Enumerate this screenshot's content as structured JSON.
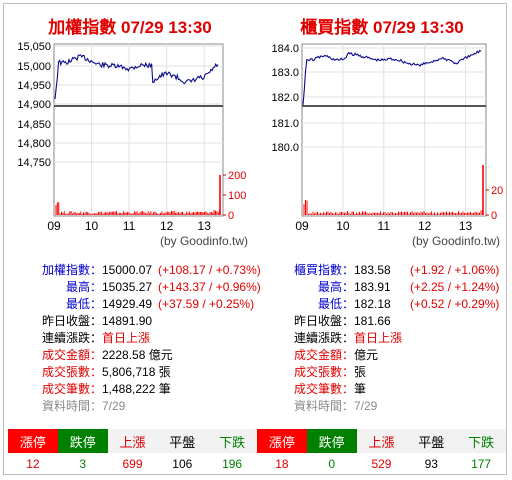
{
  "panels": [
    {
      "title": "加權指數",
      "time": "07/29 13:30",
      "source": "(by Goodinfo.tw)",
      "y_labels": [
        "15,050",
        "15,000",
        "14,950",
        "14,900",
        "14,850",
        "14,800",
        "14,750"
      ],
      "vol_labels": [
        "200",
        "100",
        "0"
      ],
      "x_labels": [
        "09",
        "10",
        "11",
        "12",
        "13"
      ],
      "rows": [
        {
          "label": "加權指數：",
          "value": "15000.07",
          "change": "(+108.17 / +0.73%)"
        },
        {
          "label": "最高：",
          "value": "15035.27",
          "change": "(+143.37 / +0.96%)"
        },
        {
          "label": "最低：",
          "value": "14929.49",
          "change": "(+37.59 / +0.25%)"
        },
        {
          "label": "昨日收盤：",
          "value": "14891.90",
          "change": ""
        },
        {
          "label": "連續漲跌：",
          "value": "首日上漲",
          "change": ""
        },
        {
          "label": "成交金額：",
          "value": "2228.58 億元",
          "change": ""
        },
        {
          "label": "成交張數：",
          "value": "5,806,718 張",
          "change": ""
        },
        {
          "label": "成交筆數：",
          "value": "1,488,222 筆",
          "change": ""
        },
        {
          "label": "資料時間：",
          "value": "7/29",
          "change": ""
        }
      ]
    },
    {
      "title": "櫃買指數",
      "time": "07/29 13:30",
      "source": "(by Goodinfo.tw)",
      "y_labels": [
        "184.0",
        "183.0",
        "182.0",
        "181.0",
        "180.0"
      ],
      "vol_labels": [
        "20",
        "0"
      ],
      "x_labels": [
        "09",
        "10",
        "11",
        "12",
        "13"
      ],
      "rows": [
        {
          "label": "櫃買指數：",
          "value": "183.58",
          "change": "(+1.92 / +1.06%)"
        },
        {
          "label": "最高：",
          "value": "183.91",
          "change": "(+2.25 / +1.24%)"
        },
        {
          "label": "最低：",
          "value": "182.18",
          "change": "(+0.52 / +0.29%)"
        },
        {
          "label": "昨日收盤：",
          "value": "181.66",
          "change": ""
        },
        {
          "label": "連續漲跌：",
          "value": "首日上漲",
          "change": ""
        },
        {
          "label": "成交金額：",
          "value": "億元",
          "change": ""
        },
        {
          "label": "成交張數：",
          "value": "張",
          "change": ""
        },
        {
          "label": "成交筆數：",
          "value": "筆",
          "change": ""
        },
        {
          "label": "資料時間：",
          "value": "7/29",
          "change": ""
        }
      ]
    }
  ],
  "summary": {
    "headers": [
      "漲停",
      "跌停",
      "上漲",
      "平盤",
      "下跌"
    ],
    "left": [
      "12",
      "3",
      "699",
      "106",
      "196"
    ],
    "right": [
      "18",
      "0",
      "529",
      "93",
      "177"
    ]
  },
  "colors": {
    "line": "#0a0a8c",
    "base": "#555555",
    "volume": "#ff0000",
    "up": "#e00000",
    "down": "#008000"
  }
}
